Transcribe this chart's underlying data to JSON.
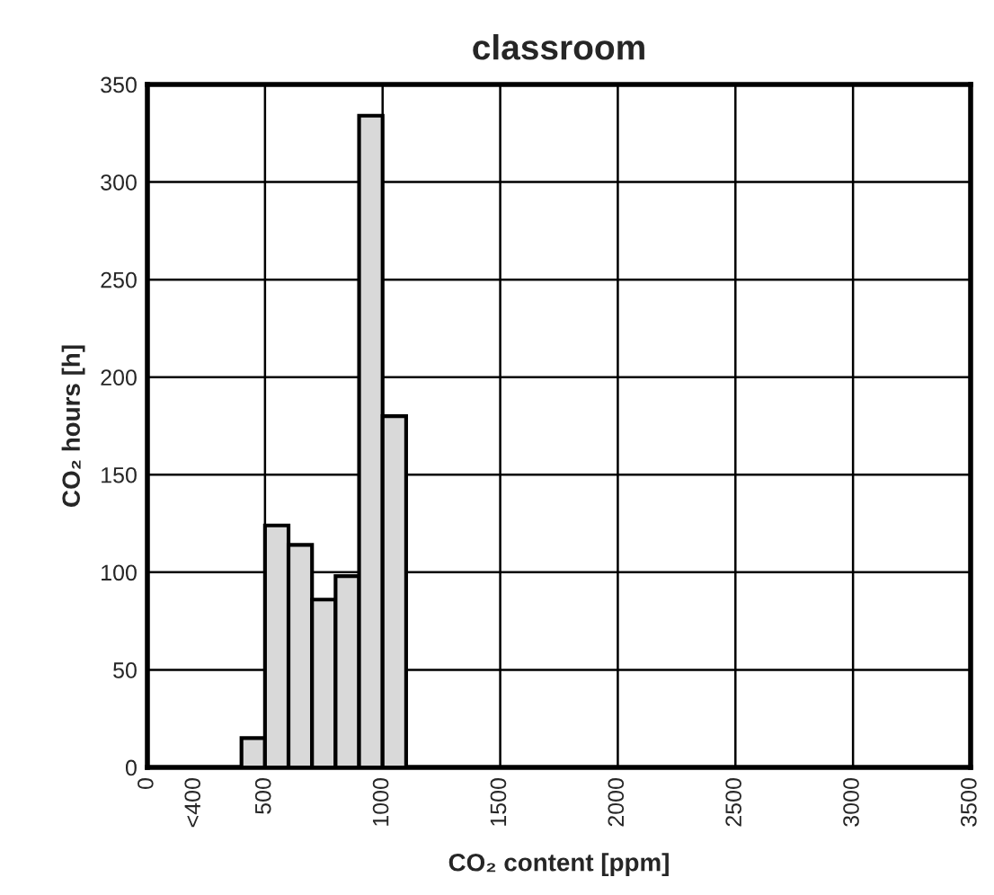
{
  "chart_data": {
    "type": "histogram",
    "title": "classroom",
    "xlabel": "CO₂ content [ppm]",
    "ylabel": "CO₂ hours [h]",
    "bins": [
      400,
      500,
      600,
      700,
      800,
      900,
      1000,
      1100
    ],
    "values": [
      15,
      124,
      114,
      86,
      98,
      334,
      180
    ],
    "color": "#d9d9d9",
    "xlim": [
      0,
      3500
    ],
    "ylim": [
      0,
      350
    ],
    "xticks": [
      0,
      {
        "value": 200,
        "label": "<400"
      },
      500,
      1000,
      1500,
      2000,
      2500,
      3000,
      3500
    ],
    "yticks": [
      0,
      50,
      100,
      150,
      200,
      250,
      300,
      350
    ],
    "grid": true
  }
}
